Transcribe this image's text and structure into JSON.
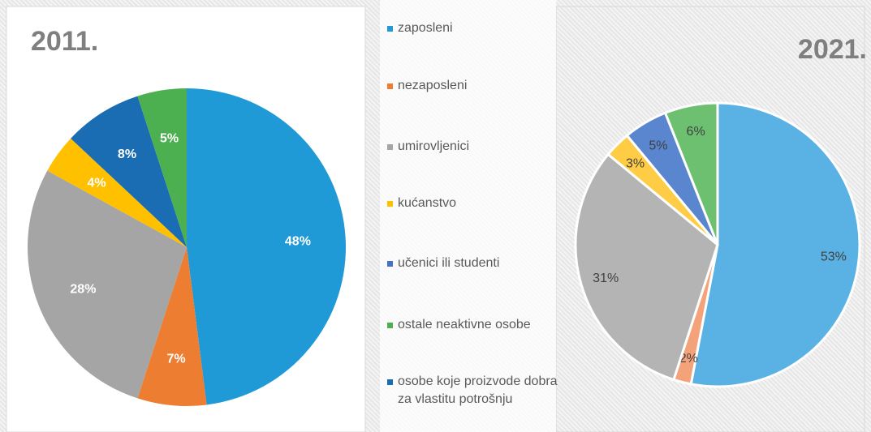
{
  "legend": [
    {
      "name": "zaposleni",
      "color": "#1f9ad6"
    },
    {
      "name": "nezaposleni",
      "color": "#ed7d31"
    },
    {
      "name": "umirovljenici",
      "color": "#a5a5a5"
    },
    {
      "name": "kućanstvo",
      "color": "#ffc000"
    },
    {
      "name": "učenici ili studenti",
      "color": "#4472c4"
    },
    {
      "name": "ostale neaktivne osobe",
      "color": "#4caf50"
    },
    {
      "name": "osobe koje proizvode dobra za vlastitu potrošnju",
      "color": "#1a6db3"
    }
  ],
  "chart_data": [
    {
      "type": "pie",
      "title": "2011.",
      "values": [
        48,
        7,
        28,
        4,
        8,
        5
      ],
      "value_labels": [
        "48%",
        "7%",
        "28%",
        "4%",
        "8%",
        "5%"
      ],
      "colors": [
        "#1f9ad6",
        "#ed7d31",
        "#a5a5a5",
        "#ffc000",
        "#1a6db3",
        "#4caf50"
      ]
    },
    {
      "type": "pie",
      "title": "2021.",
      "values": [
        53,
        2,
        31,
        3,
        5,
        6
      ],
      "value_labels": [
        "53%",
        "2%",
        "31%",
        "3%",
        "5%",
        "6%"
      ],
      "colors": [
        "#5ab2e4",
        "#f3a27a",
        "#b4b4b4",
        "#ffcd45",
        "#5a86cf",
        "#6cc070"
      ]
    }
  ]
}
